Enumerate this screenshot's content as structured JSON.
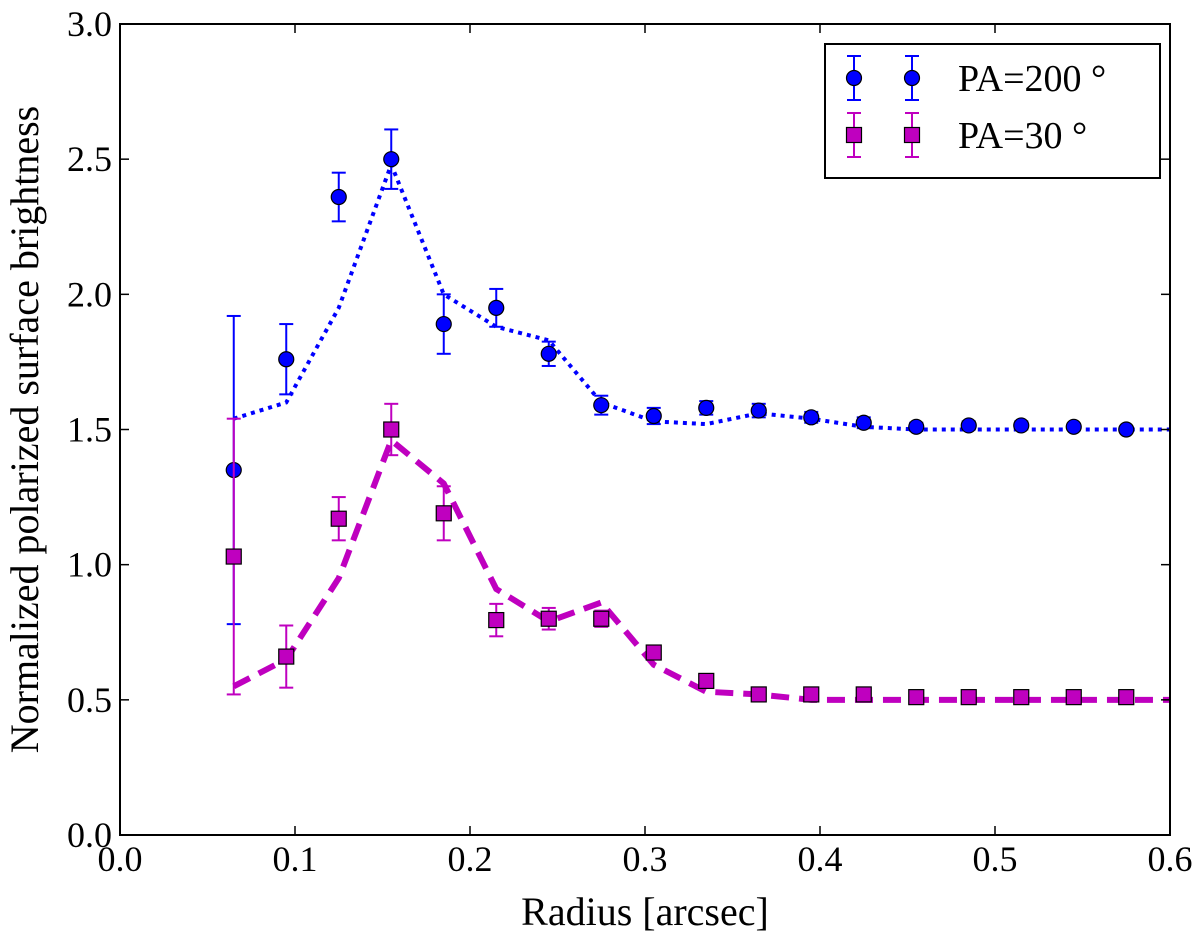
{
  "chart_data": {
    "type": "scatter",
    "xlabel": "Radius [arcsec]",
    "ylabel": "Normalized polarized surface brightness",
    "xlim": [
      0.0,
      0.6
    ],
    "ylim": [
      0.0,
      3.0
    ],
    "xticks": [
      0.0,
      0.1,
      0.2,
      0.3,
      0.4,
      0.5,
      0.6
    ],
    "xtick_labels": [
      "0.0",
      "0.1",
      "0.2",
      "0.3",
      "0.4",
      "0.5",
      "0.6"
    ],
    "yticks": [
      0.0,
      0.5,
      1.0,
      1.5,
      2.0,
      2.5,
      3.0
    ],
    "ytick_labels": [
      "0.0",
      "0.5",
      "1.0",
      "1.5",
      "2.0",
      "2.5",
      "3.0"
    ],
    "grid": false,
    "legend_position": "top-right",
    "series": [
      {
        "name": "PA=200 °",
        "color": "#0000ff",
        "marker": "circle",
        "x": [
          0.065,
          0.095,
          0.125,
          0.155,
          0.185,
          0.215,
          0.245,
          0.275,
          0.305,
          0.335,
          0.365,
          0.395,
          0.425,
          0.455,
          0.485,
          0.515,
          0.545,
          0.575
        ],
        "y": [
          1.35,
          1.76,
          2.36,
          2.5,
          1.89,
          1.95,
          1.78,
          1.59,
          1.55,
          1.58,
          1.57,
          1.545,
          1.525,
          1.51,
          1.515,
          1.515,
          1.51,
          1.5
        ],
        "yerr": [
          0.57,
          0.13,
          0.09,
          0.11,
          0.11,
          0.07,
          0.045,
          0.035,
          0.03,
          0.025,
          0.025,
          0.02,
          0.02,
          0.015,
          0.015,
          0.015,
          0.01,
          0.01
        ],
        "model": {
          "style": "dotted",
          "x": [
            0.065,
            0.095,
            0.125,
            0.155,
            0.185,
            0.215,
            0.245,
            0.275,
            0.305,
            0.335,
            0.365,
            0.395,
            0.425,
            0.455,
            0.485,
            0.515,
            0.545,
            0.575,
            0.6
          ],
          "y": [
            1.54,
            1.6,
            1.95,
            2.48,
            2.0,
            1.88,
            1.83,
            1.6,
            1.53,
            1.52,
            1.56,
            1.54,
            1.51,
            1.5,
            1.5,
            1.5,
            1.5,
            1.5,
            1.5
          ]
        }
      },
      {
        "name": "PA=30 °",
        "color": "#bf00bf",
        "marker": "square",
        "x": [
          0.065,
          0.095,
          0.125,
          0.155,
          0.185,
          0.215,
          0.245,
          0.275,
          0.305,
          0.335,
          0.365,
          0.395,
          0.425,
          0.455,
          0.485,
          0.515,
          0.545,
          0.575
        ],
        "y": [
          1.03,
          0.66,
          1.17,
          1.5,
          1.19,
          0.795,
          0.8,
          0.8,
          0.675,
          0.57,
          0.52,
          0.52,
          0.52,
          0.51,
          0.51,
          0.51,
          0.51,
          0.51
        ],
        "yerr": [
          0.51,
          0.115,
          0.08,
          0.095,
          0.1,
          0.06,
          0.04,
          0.03,
          0.025,
          0.02,
          0.015,
          0.015,
          0.015,
          0.01,
          0.01,
          0.01,
          0.01,
          0.01
        ],
        "model": {
          "style": "dashed",
          "x": [
            0.065,
            0.095,
            0.125,
            0.155,
            0.185,
            0.215,
            0.245,
            0.275,
            0.305,
            0.335,
            0.365,
            0.395,
            0.425,
            0.455,
            0.485,
            0.515,
            0.545,
            0.575,
            0.6
          ],
          "y": [
            0.55,
            0.65,
            0.95,
            1.46,
            1.3,
            0.91,
            0.79,
            0.86,
            0.63,
            0.53,
            0.52,
            0.5,
            0.5,
            0.5,
            0.5,
            0.5,
            0.5,
            0.5,
            0.5
          ]
        }
      }
    ]
  }
}
